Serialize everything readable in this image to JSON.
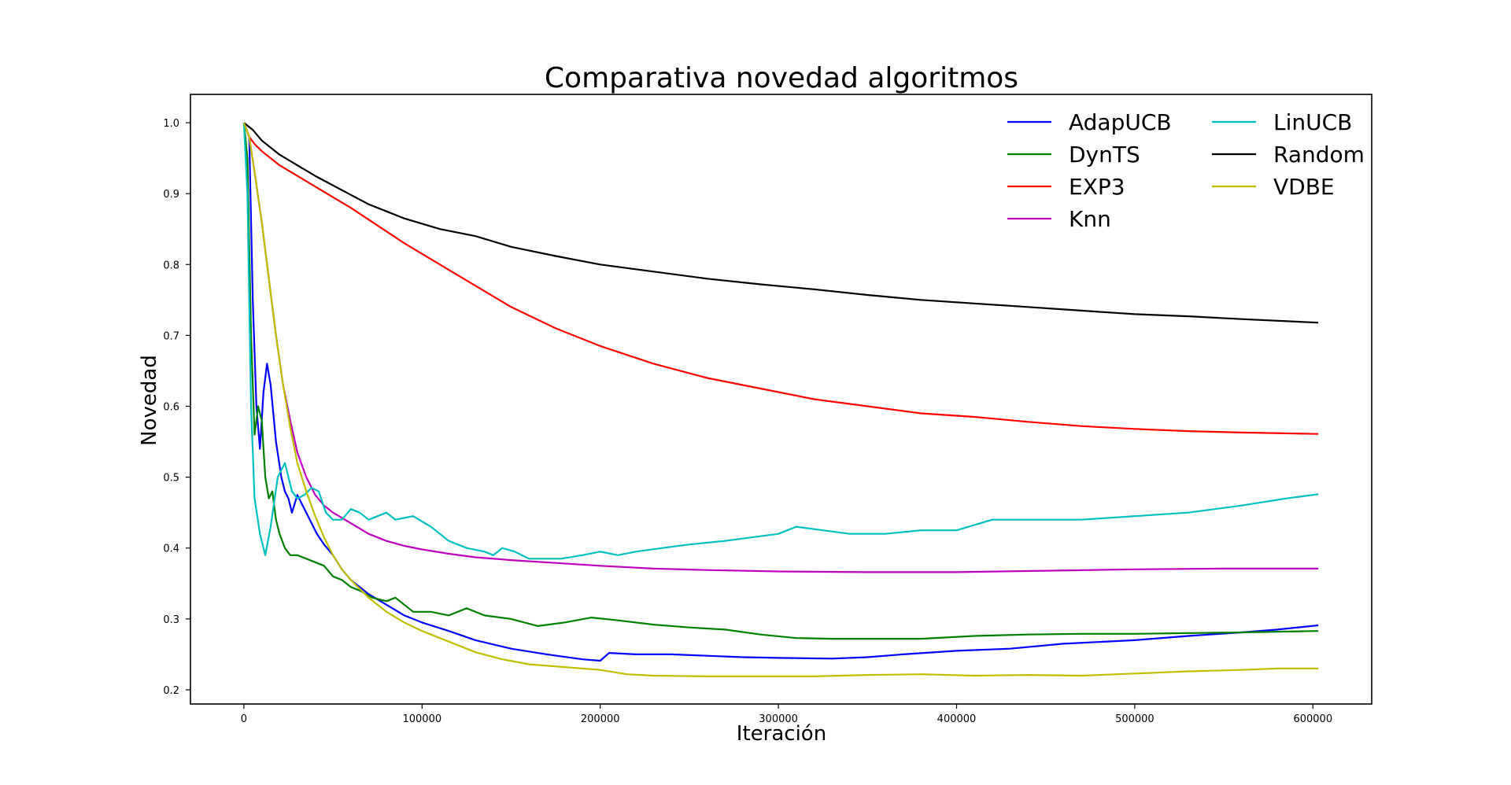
{
  "chart_data": {
    "type": "line",
    "title": "Comparativa novedad algoritmos",
    "xlabel": "Iteración",
    "ylabel": "Novedad",
    "xlim": [
      -30000,
      633000
    ],
    "ylim": [
      0.18,
      1.04
    ],
    "xticks": [
      0,
      100000,
      200000,
      300000,
      400000,
      500000,
      600000
    ],
    "xtick_labels": [
      "0",
      "100000",
      "200000",
      "300000",
      "400000",
      "500000",
      "600000"
    ],
    "yticks": [
      0.2,
      0.3,
      0.4,
      0.5,
      0.6,
      0.7,
      0.8,
      0.9,
      1.0
    ],
    "ytick_labels": [
      "0.2",
      "0.3",
      "0.4",
      "0.5",
      "0.6",
      "0.7",
      "0.8",
      "0.9",
      "1.0"
    ],
    "grid": false,
    "legend_position": "top-right",
    "legend_columns": 2,
    "series": [
      {
        "name": "AdapUCB",
        "color": "#0000ff",
        "points": [
          [
            0,
            1.0
          ],
          [
            3000,
            0.98
          ],
          [
            5000,
            0.75
          ],
          [
            7000,
            0.6
          ],
          [
            9000,
            0.54
          ],
          [
            11000,
            0.62
          ],
          [
            13000,
            0.66
          ],
          [
            15000,
            0.63
          ],
          [
            18000,
            0.55
          ],
          [
            21000,
            0.5
          ],
          [
            23000,
            0.48
          ],
          [
            25000,
            0.47
          ],
          [
            27000,
            0.45
          ],
          [
            30000,
            0.475
          ],
          [
            33000,
            0.46
          ],
          [
            37000,
            0.44
          ],
          [
            41000,
            0.42
          ],
          [
            45000,
            0.405
          ],
          [
            50000,
            0.39
          ],
          [
            55000,
            0.37
          ],
          [
            60000,
            0.355
          ],
          [
            70000,
            0.335
          ],
          [
            80000,
            0.32
          ],
          [
            90000,
            0.305
          ],
          [
            100000,
            0.295
          ],
          [
            115000,
            0.283
          ],
          [
            130000,
            0.27
          ],
          [
            150000,
            0.258
          ],
          [
            170000,
            0.25
          ],
          [
            190000,
            0.243
          ],
          [
            200000,
            0.241
          ],
          [
            205000,
            0.252
          ],
          [
            220000,
            0.25
          ],
          [
            240000,
            0.25
          ],
          [
            260000,
            0.248
          ],
          [
            280000,
            0.246
          ],
          [
            300000,
            0.245
          ],
          [
            330000,
            0.244
          ],
          [
            350000,
            0.246
          ],
          [
            370000,
            0.25
          ],
          [
            400000,
            0.255
          ],
          [
            430000,
            0.258
          ],
          [
            460000,
            0.265
          ],
          [
            500000,
            0.27
          ],
          [
            530000,
            0.276
          ],
          [
            560000,
            0.281
          ],
          [
            580000,
            0.285
          ],
          [
            603000,
            0.291
          ]
        ]
      },
      {
        "name": "DynTS",
        "color": "#008000",
        "points": [
          [
            0,
            1.0
          ],
          [
            2000,
            0.95
          ],
          [
            4000,
            0.7
          ],
          [
            6000,
            0.56
          ],
          [
            8000,
            0.6
          ],
          [
            10000,
            0.58
          ],
          [
            12000,
            0.5
          ],
          [
            14000,
            0.47
          ],
          [
            16000,
            0.48
          ],
          [
            18000,
            0.44
          ],
          [
            20000,
            0.42
          ],
          [
            23000,
            0.4
          ],
          [
            26000,
            0.39
          ],
          [
            30000,
            0.39
          ],
          [
            35000,
            0.385
          ],
          [
            40000,
            0.38
          ],
          [
            45000,
            0.375
          ],
          [
            50000,
            0.36
          ],
          [
            55000,
            0.355
          ],
          [
            60000,
            0.345
          ],
          [
            65000,
            0.34
          ],
          [
            72000,
            0.33
          ],
          [
            80000,
            0.325
          ],
          [
            85000,
            0.33
          ],
          [
            90000,
            0.32
          ],
          [
            95000,
            0.31
          ],
          [
            105000,
            0.31
          ],
          [
            115000,
            0.305
          ],
          [
            125000,
            0.315
          ],
          [
            135000,
            0.305
          ],
          [
            150000,
            0.3
          ],
          [
            165000,
            0.29
          ],
          [
            180000,
            0.295
          ],
          [
            195000,
            0.302
          ],
          [
            210000,
            0.298
          ],
          [
            230000,
            0.292
          ],
          [
            250000,
            0.288
          ],
          [
            270000,
            0.285
          ],
          [
            290000,
            0.278
          ],
          [
            310000,
            0.273
          ],
          [
            330000,
            0.272
          ],
          [
            350000,
            0.272
          ],
          [
            380000,
            0.272
          ],
          [
            410000,
            0.276
          ],
          [
            440000,
            0.278
          ],
          [
            470000,
            0.279
          ],
          [
            500000,
            0.279
          ],
          [
            530000,
            0.28
          ],
          [
            560000,
            0.281
          ],
          [
            580000,
            0.282
          ],
          [
            603000,
            0.283
          ]
        ]
      },
      {
        "name": "EXP3",
        "color": "#ff0000",
        "points": [
          [
            0,
            1.0
          ],
          [
            3000,
            0.98
          ],
          [
            6000,
            0.97
          ],
          [
            10000,
            0.96
          ],
          [
            15000,
            0.95
          ],
          [
            20000,
            0.94
          ],
          [
            30000,
            0.925
          ],
          [
            40000,
            0.91
          ],
          [
            50000,
            0.895
          ],
          [
            60000,
            0.88
          ],
          [
            75000,
            0.855
          ],
          [
            90000,
            0.83
          ],
          [
            110000,
            0.8
          ],
          [
            130000,
            0.77
          ],
          [
            150000,
            0.74
          ],
          [
            175000,
            0.71
          ],
          [
            200000,
            0.685
          ],
          [
            230000,
            0.66
          ],
          [
            260000,
            0.64
          ],
          [
            290000,
            0.625
          ],
          [
            320000,
            0.61
          ],
          [
            350000,
            0.6
          ],
          [
            380000,
            0.59
          ],
          [
            410000,
            0.585
          ],
          [
            440000,
            0.578
          ],
          [
            470000,
            0.572
          ],
          [
            500000,
            0.568
          ],
          [
            530000,
            0.565
          ],
          [
            560000,
            0.563
          ],
          [
            603000,
            0.561
          ]
        ]
      },
      {
        "name": "Knn",
        "color": "#bf00bf",
        "points": [
          [
            0,
            1.0
          ],
          [
            3000,
            0.98
          ],
          [
            6000,
            0.93
          ],
          [
            10000,
            0.86
          ],
          [
            14000,
            0.78
          ],
          [
            18000,
            0.7
          ],
          [
            22000,
            0.63
          ],
          [
            26000,
            0.58
          ],
          [
            30000,
            0.535
          ],
          [
            35000,
            0.5
          ],
          [
            40000,
            0.475
          ],
          [
            45000,
            0.46
          ],
          [
            50000,
            0.45
          ],
          [
            60000,
            0.435
          ],
          [
            70000,
            0.42
          ],
          [
            80000,
            0.41
          ],
          [
            90000,
            0.403
          ],
          [
            100000,
            0.398
          ],
          [
            115000,
            0.392
          ],
          [
            130000,
            0.387
          ],
          [
            150000,
            0.383
          ],
          [
            175000,
            0.379
          ],
          [
            200000,
            0.375
          ],
          [
            230000,
            0.371
          ],
          [
            260000,
            0.369
          ],
          [
            300000,
            0.367
          ],
          [
            350000,
            0.366
          ],
          [
            400000,
            0.366
          ],
          [
            450000,
            0.368
          ],
          [
            500000,
            0.37
          ],
          [
            550000,
            0.371
          ],
          [
            603000,
            0.371
          ]
        ]
      },
      {
        "name": "LinUCB",
        "color": "#00bfbf",
        "points": [
          [
            0,
            1.0
          ],
          [
            2000,
            0.9
          ],
          [
            4000,
            0.6
          ],
          [
            6000,
            0.47
          ],
          [
            9000,
            0.42
          ],
          [
            12000,
            0.39
          ],
          [
            15000,
            0.43
          ],
          [
            19000,
            0.5
          ],
          [
            23000,
            0.52
          ],
          [
            27000,
            0.48
          ],
          [
            30000,
            0.47
          ],
          [
            34000,
            0.475
          ],
          [
            38000,
            0.485
          ],
          [
            42000,
            0.48
          ],
          [
            46000,
            0.45
          ],
          [
            50000,
            0.44
          ],
          [
            55000,
            0.44
          ],
          [
            60000,
            0.455
          ],
          [
            65000,
            0.45
          ],
          [
            70000,
            0.44
          ],
          [
            75000,
            0.445
          ],
          [
            80000,
            0.45
          ],
          [
            85000,
            0.44
          ],
          [
            95000,
            0.445
          ],
          [
            105000,
            0.43
          ],
          [
            115000,
            0.41
          ],
          [
            125000,
            0.4
          ],
          [
            135000,
            0.395
          ],
          [
            140000,
            0.39
          ],
          [
            145000,
            0.4
          ],
          [
            152000,
            0.395
          ],
          [
            160000,
            0.385
          ],
          [
            170000,
            0.385
          ],
          [
            178000,
            0.385
          ],
          [
            190000,
            0.39
          ],
          [
            200000,
            0.395
          ],
          [
            210000,
            0.39
          ],
          [
            220000,
            0.395
          ],
          [
            235000,
            0.4
          ],
          [
            250000,
            0.405
          ],
          [
            270000,
            0.41
          ],
          [
            285000,
            0.415
          ],
          [
            300000,
            0.42
          ],
          [
            310000,
            0.43
          ],
          [
            325000,
            0.425
          ],
          [
            340000,
            0.42
          ],
          [
            360000,
            0.42
          ],
          [
            380000,
            0.425
          ],
          [
            400000,
            0.425
          ],
          [
            420000,
            0.44
          ],
          [
            440000,
            0.44
          ],
          [
            470000,
            0.44
          ],
          [
            500000,
            0.445
          ],
          [
            530000,
            0.45
          ],
          [
            560000,
            0.46
          ],
          [
            585000,
            0.47
          ],
          [
            603000,
            0.476
          ]
        ]
      },
      {
        "name": "Random",
        "color": "#000000",
        "points": [
          [
            0,
            1.0
          ],
          [
            5000,
            0.99
          ],
          [
            10000,
            0.975
          ],
          [
            20000,
            0.955
          ],
          [
            30000,
            0.94
          ],
          [
            40000,
            0.925
          ],
          [
            55000,
            0.905
          ],
          [
            70000,
            0.885
          ],
          [
            90000,
            0.865
          ],
          [
            110000,
            0.85
          ],
          [
            130000,
            0.84
          ],
          [
            150000,
            0.825
          ],
          [
            175000,
            0.812
          ],
          [
            200000,
            0.8
          ],
          [
            230000,
            0.79
          ],
          [
            260000,
            0.78
          ],
          [
            290000,
            0.772
          ],
          [
            320000,
            0.765
          ],
          [
            350000,
            0.757
          ],
          [
            380000,
            0.75
          ],
          [
            410000,
            0.745
          ],
          [
            440000,
            0.74
          ],
          [
            470000,
            0.735
          ],
          [
            500000,
            0.73
          ],
          [
            530000,
            0.727
          ],
          [
            560000,
            0.723
          ],
          [
            603000,
            0.718
          ]
        ]
      },
      {
        "name": "VDBE",
        "color": "#bfbf00",
        "points": [
          [
            0,
            1.0
          ],
          [
            3000,
            0.98
          ],
          [
            6000,
            0.93
          ],
          [
            10000,
            0.86
          ],
          [
            14000,
            0.78
          ],
          [
            18000,
            0.7
          ],
          [
            22000,
            0.63
          ],
          [
            26000,
            0.57
          ],
          [
            30000,
            0.52
          ],
          [
            35000,
            0.48
          ],
          [
            40000,
            0.445
          ],
          [
            45000,
            0.415
          ],
          [
            50000,
            0.39
          ],
          [
            55000,
            0.37
          ],
          [
            60000,
            0.355
          ],
          [
            70000,
            0.33
          ],
          [
            80000,
            0.31
          ],
          [
            90000,
            0.295
          ],
          [
            100000,
            0.283
          ],
          [
            115000,
            0.268
          ],
          [
            130000,
            0.253
          ],
          [
            145000,
            0.243
          ],
          [
            160000,
            0.236
          ],
          [
            180000,
            0.232
          ],
          [
            200000,
            0.228
          ],
          [
            215000,
            0.222
          ],
          [
            230000,
            0.22
          ],
          [
            260000,
            0.219
          ],
          [
            290000,
            0.219
          ],
          [
            320000,
            0.219
          ],
          [
            350000,
            0.221
          ],
          [
            380000,
            0.222
          ],
          [
            410000,
            0.22
          ],
          [
            440000,
            0.221
          ],
          [
            470000,
            0.22
          ],
          [
            500000,
            0.223
          ],
          [
            530000,
            0.226
          ],
          [
            560000,
            0.228
          ],
          [
            580000,
            0.23
          ],
          [
            603000,
            0.23
          ]
        ]
      }
    ]
  }
}
